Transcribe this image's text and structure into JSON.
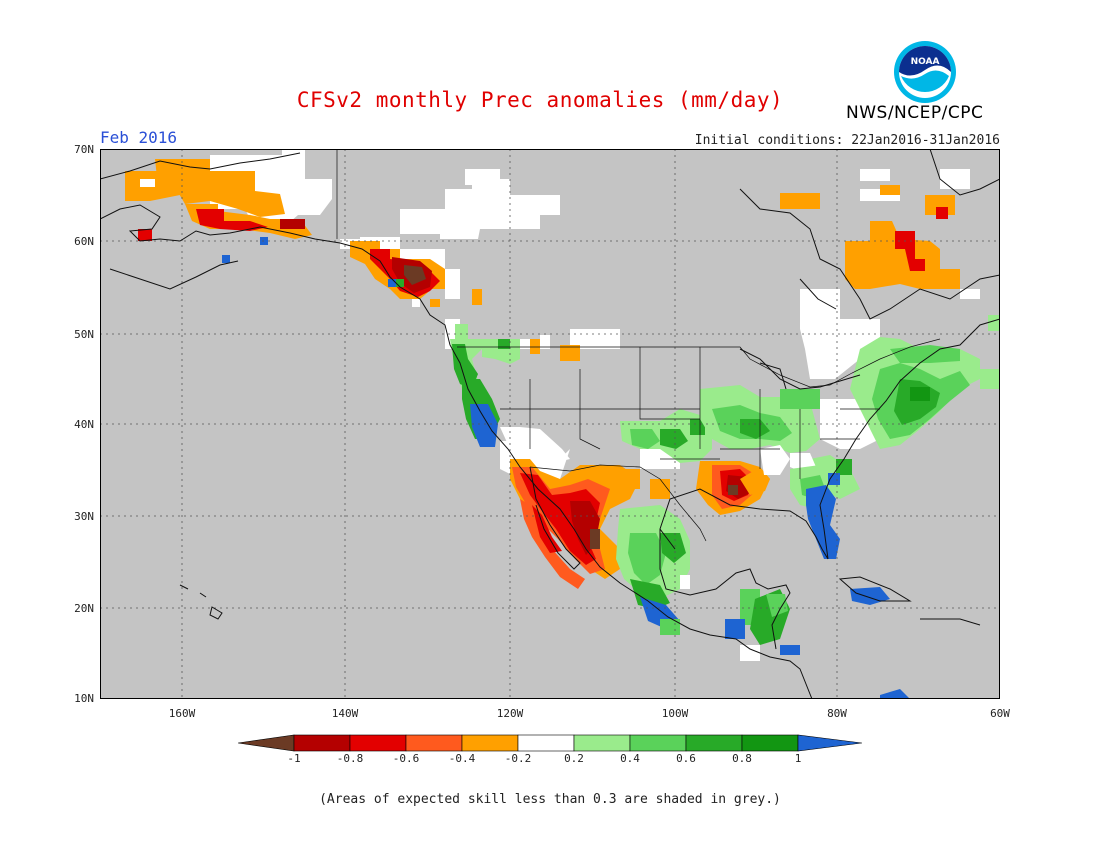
{
  "header": {
    "title": "CFSv2 monthly Prec anomalies (mm/day)",
    "org": "NWS/NCEP/CPC",
    "logo_text": "NOAA",
    "month": "Feb 2016",
    "initial_conditions": "Initial conditions: 22Jan2016-31Jan2016"
  },
  "axes": {
    "lat_labels": [
      "70N",
      "60N",
      "50N",
      "40N",
      "30N",
      "20N",
      "10N"
    ],
    "lon_labels": [
      "160W",
      "140W",
      "120W",
      "100W",
      "80W",
      "60W"
    ]
  },
  "colorbar": {
    "ticks": [
      "-1",
      "-0.8",
      "-0.6",
      "-0.4",
      "-0.2",
      "0.2",
      "0.4",
      "0.6",
      "0.8",
      "1"
    ],
    "colors": [
      "#6b3a24",
      "#b40000",
      "#e30000",
      "#ff5a1e",
      "#ffa000",
      "#ffffff",
      "#9aeb8c",
      "#5ad25a",
      "#28aa28",
      "#129612",
      "#1e64d2"
    ]
  },
  "colors": {
    "grey": "#c4c4c4",
    "ocean": "#c4c4c4",
    "title": "#e00000",
    "month": "#2a4fd6"
  },
  "footnote": "(Areas of expected skill less than 0.3 are shaded in grey.)"
}
